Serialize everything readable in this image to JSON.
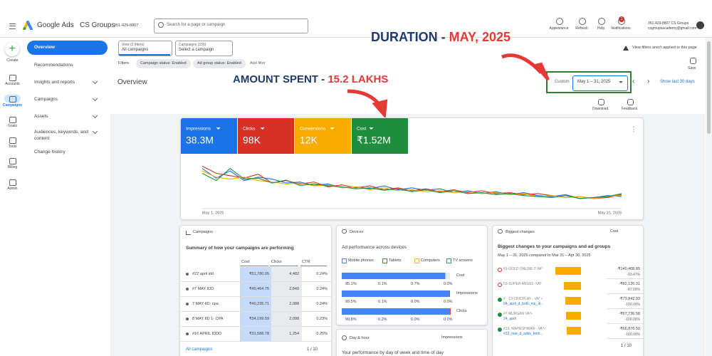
{
  "header": {
    "app_name": "Google Ads",
    "account_name": "CS Groups",
    "account_id": "351-429-8807",
    "search_placeholder": "Search for a page or campaign",
    "actions": [
      "Appearance",
      "Refresh",
      "Help",
      "Notifications"
    ],
    "notification_count": "1",
    "user_id": "351-429-8807 CS Groups",
    "user_email": "csgroupsacademy@gmail.com"
  },
  "sidebar": {
    "create": "Create",
    "nav": [
      "Accounts",
      "Campaigns",
      "Goals",
      "Tools",
      "Billing",
      "Admin"
    ],
    "menu": [
      "Overview",
      "Recommendations",
      "Insights and reports",
      "Campaigns",
      "Assets",
      "Audiences, keywords, and content",
      "Change history"
    ]
  },
  "filters": {
    "view_label": "View (2 filters)",
    "view_value": "All campaigns",
    "campaigns_label": "Campaigns (155)",
    "campaigns_value": "Select a campaign",
    "filters_label": "Filters",
    "chips": [
      "Campaign status: Enabled",
      "Ad group status: Enabled"
    ],
    "add_filter": "Add filter",
    "notice": "View filters aren't applied to this page",
    "save": "Save"
  },
  "page_title": "Overview",
  "date": {
    "custom": "Custom",
    "range": "May 1 – 31, 2025",
    "show_last": "Show last 30 days"
  },
  "toolbar": {
    "download": "Download",
    "feedback": "Feedback"
  },
  "annotations": {
    "duration": "DURATION - ",
    "duration_value": "MAY, 2025",
    "amount": "AMOUNT SPENT - ",
    "amount_value": "15.2 LAKHS"
  },
  "chart_data": {
    "type": "line",
    "categories": [
      "May 1, 2025",
      null,
      null,
      null,
      null,
      null,
      null,
      null,
      null,
      null,
      null,
      null,
      null,
      null,
      null,
      null,
      null,
      null,
      null,
      null,
      null,
      null,
      null,
      null,
      null,
      null,
      null,
      null,
      null,
      null,
      "May 31, 2025"
    ],
    "ylim": [
      0,
      100
    ],
    "series": [
      {
        "name": "Impressions",
        "total": "38.3M",
        "color": "#1a73e8",
        "values": [
          80,
          60,
          75,
          55,
          62,
          58,
          50,
          52,
          45,
          48,
          40,
          42,
          38,
          44,
          36,
          40,
          35,
          38,
          30,
          34,
          28,
          32,
          26,
          30,
          24,
          22,
          26,
          18,
          20,
          24,
          22
        ]
      },
      {
        "name": "Clicks",
        "total": "98K",
        "color": "#d93025",
        "values": [
          85,
          70,
          65,
          60,
          68,
          50,
          55,
          48,
          52,
          42,
          46,
          40,
          44,
          36,
          40,
          34,
          38,
          32,
          36,
          30,
          34,
          28,
          30,
          26,
          28,
          24,
          20,
          22,
          18,
          20,
          26
        ]
      },
      {
        "name": "Conversions",
        "total": "12K",
        "color": "#f9ab00",
        "values": [
          75,
          62,
          58,
          62,
          55,
          52,
          48,
          50,
          44,
          46,
          40,
          42,
          36,
          40,
          34,
          36,
          32,
          34,
          30,
          32,
          28,
          30,
          26,
          28,
          22,
          24,
          20,
          22,
          18,
          22,
          24
        ]
      },
      {
        "name": "Cost",
        "total": "₹1.52M",
        "color": "#1e8e3e",
        "values": [
          70,
          55,
          80,
          58,
          60,
          50,
          56,
          45,
          48,
          44,
          42,
          38,
          40,
          35,
          38,
          32,
          36,
          30,
          34,
          28,
          30,
          26,
          28,
          24,
          22,
          20,
          24,
          18,
          20,
          22,
          28
        ]
      }
    ]
  },
  "campaigns": {
    "title": "Campaigns",
    "subtitle": "Summary of how your campaigns are performing",
    "columns": [
      "Cost",
      "Clicks",
      "CTR"
    ],
    "rows": [
      [
        "#22 april idd",
        "₹51,780.05",
        "4,482",
        "0.24%"
      ],
      [
        "#7 MAY IDD",
        "₹40,464.75",
        "2,849",
        "0.24%"
      ],
      [
        "7 MAY IID- cpa",
        "₹40,235.71",
        "2,088",
        "0.24%"
      ],
      [
        "8 MAY IID 1- CPA",
        "₹34,199.59",
        "2,098",
        "0.23%"
      ],
      [
        "#16 APRIL IDDD",
        "₹31,588.78",
        "1,254",
        "0.25%"
      ]
    ],
    "footer": "All campaigns",
    "pager": "1 / 10"
  },
  "devices": {
    "title": "Devices",
    "subtitle": "Ad performance across devices",
    "legend": [
      {
        "name": "Mobile phones",
        "color": "#4285f4"
      },
      {
        "name": "Tablets",
        "color": "#ea4335"
      },
      {
        "name": "Computers",
        "color": "#fbbc04"
      },
      {
        "name": "TV screens",
        "color": "#34a853"
      }
    ],
    "rows": [
      {
        "metric": "Cost",
        "values": [
          95.1,
          0.1,
          0.7,
          0.0
        ],
        "value_labels": [
          "95.1%",
          "0.1%",
          "0.7%",
          "0.0%"
        ]
      },
      {
        "metric": "Impressions",
        "values": [
          99.5,
          0.1,
          0.0,
          0.0
        ],
        "value_labels": [
          "99.5%",
          "0.1%",
          "0.0%",
          "0.0%"
        ]
      },
      {
        "metric": "Clicks",
        "values": [
          99.8,
          0.2,
          0.0,
          0.0
        ],
        "value_labels": [
          "99.8%",
          "0.2%",
          "0.0%",
          "0.0%"
        ]
      }
    ]
  },
  "day_hour": {
    "title": "Day & hour",
    "metric": "Impressions",
    "subtitle": "Your performance by day of week and time of day"
  },
  "changes": {
    "title": "Biggest changes",
    "metric": "Cost",
    "subtitle": "Biggest changes to your campaigns and ad groups",
    "compare": "May 1 – 31, 2025 compared to Mar 31 – Apr 30, 2025",
    "rows": [
      {
        "name": "61-GOLD ONLINE 2 VA*",
        "value": "-₹140,408.85",
        "pct": "-93.47%"
      },
      {
        "name": "53-SUPER ANGEL -VA*",
        "value": "-₹82,126.31",
        "pct": "-87.65%"
      },
      {
        "name": "# - 13-CRICPLAY - VA* •",
        "sub": "04_april_d_both_mo_di...",
        "value": "-₹73,842.93",
        "pct": "-100.00%"
      },
      {
        "name": "#7 MURGAN VA*•",
        "sub": "24_april",
        "value": "-₹67,736.58",
        "pct": "-100.00%"
      },
      {
        "name": "#13- MAHESHWAR - VA*•",
        "sub": "#22_mar_d_adds_both...",
        "value": "-₹66,876.50",
        "pct": "-100.00%"
      }
    ],
    "pager": "1 / 10"
  }
}
